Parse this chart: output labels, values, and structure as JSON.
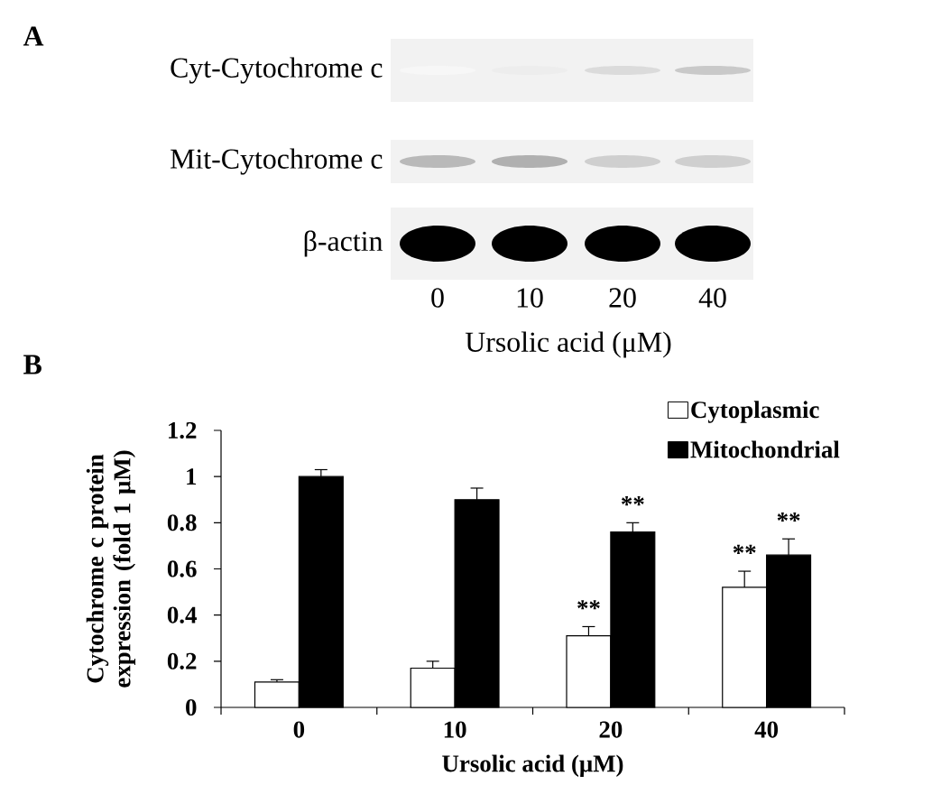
{
  "chart_data": [
    {
      "type": "other",
      "title": "A",
      "annotations": [
        "Cyt-Cytochrome c",
        "Mit-Cytochrome c",
        "β-actin",
        "0",
        "10",
        "20",
        "40",
        "Ursolic acid (μM)"
      ]
    },
    {
      "type": "bar",
      "title": "B",
      "categories": [
        "0",
        "10",
        "20",
        "40"
      ],
      "xlabel": "Ursolic acid (μM)",
      "ylabel": "Cytochrome c protein expression (fold 1 μM)",
      "ylim": [
        0,
        1.2
      ],
      "yticks": [
        0,
        0.2,
        0.4,
        0.6,
        0.8,
        1,
        1.2
      ],
      "legend": "top right",
      "series": [
        {
          "name": "Cytoplasmic",
          "color": "#ffffff",
          "values": [
            0.11,
            0.17,
            0.31,
            0.52
          ],
          "errors": [
            0.01,
            0.03,
            0.04,
            0.07
          ]
        },
        {
          "name": "Mitochondrial",
          "color": "#000000",
          "values": [
            1.0,
            0.9,
            0.76,
            0.66
          ],
          "errors": [
            0.03,
            0.05,
            0.04,
            0.07
          ]
        }
      ],
      "annotations": [
        {
          "text": "**",
          "x": "20",
          "y": 0.31
        },
        {
          "text": "**",
          "x": "20",
          "y": 0.76
        },
        {
          "text": "**",
          "x": "40",
          "y": 0.52
        },
        {
          "text": "**",
          "x": "40",
          "y": 0.66
        }
      ]
    }
  ]
}
